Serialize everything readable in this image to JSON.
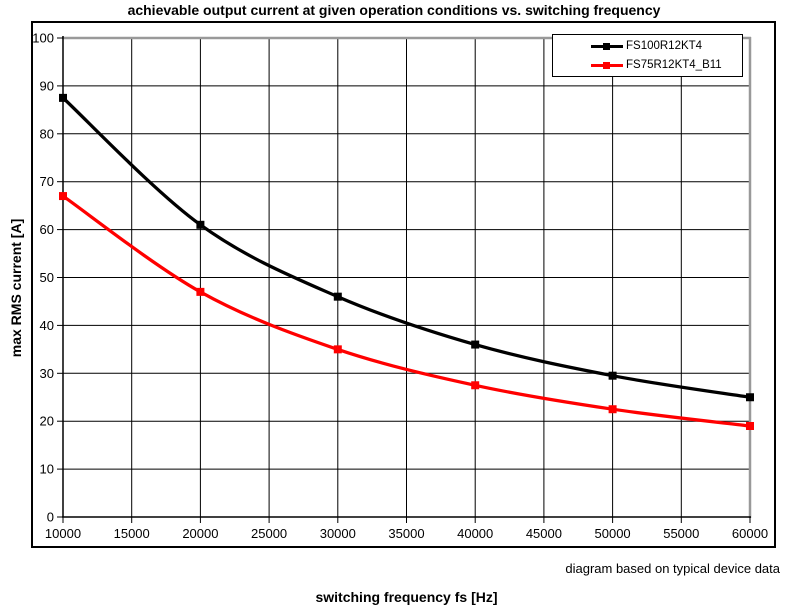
{
  "title": "achievable output current at given operation conditions vs. switching frequency",
  "note": "diagram based on typical device data",
  "x_axis": {
    "label": "switching frequency fs [Hz]",
    "ticks": [
      10000,
      15000,
      20000,
      25000,
      30000,
      35000,
      40000,
      45000,
      50000,
      55000,
      60000
    ],
    "min": 10000,
    "max": 60000
  },
  "y_axis": {
    "label": "max RMS current [A]",
    "ticks": [
      0,
      10,
      20,
      30,
      40,
      50,
      60,
      70,
      80,
      90,
      100
    ],
    "min": 0,
    "max": 100
  },
  "legend": [
    {
      "name": "FS100R12KT4",
      "color": "#000000"
    },
    {
      "name": "FS75R12KT4_B11",
      "color": "#ff0000"
    }
  ],
  "colors": {
    "series_1": "#000000",
    "series_2": "#ff0000",
    "gridline": "#000000",
    "plot_border_gray": "#999999",
    "frame": "#000000",
    "background": "#ffffff"
  },
  "chart_data": {
    "type": "line",
    "title": "achievable output current at given operation conditions vs. switching frequency",
    "xlabel": "switching frequency fs [Hz]",
    "ylabel": "max RMS current [A]",
    "x": [
      10000,
      20000,
      30000,
      40000,
      50000,
      60000
    ],
    "series": [
      {
        "name": "FS100R12KT4",
        "color": "#000000",
        "values": [
          87.5,
          61,
          46,
          36,
          29.5,
          25
        ]
      },
      {
        "name": "FS75R12KT4_B11",
        "color": "#ff0000",
        "values": [
          67,
          47,
          35,
          27.5,
          22.5,
          19
        ]
      }
    ],
    "xlim": [
      10000,
      60000
    ],
    "ylim": [
      0,
      100
    ],
    "x_grid_step": 5000,
    "y_grid_step": 10,
    "grid": true,
    "marker": "square",
    "smooth": true,
    "legend_position": "top-right",
    "annotation": "diagram based on typical device data"
  }
}
